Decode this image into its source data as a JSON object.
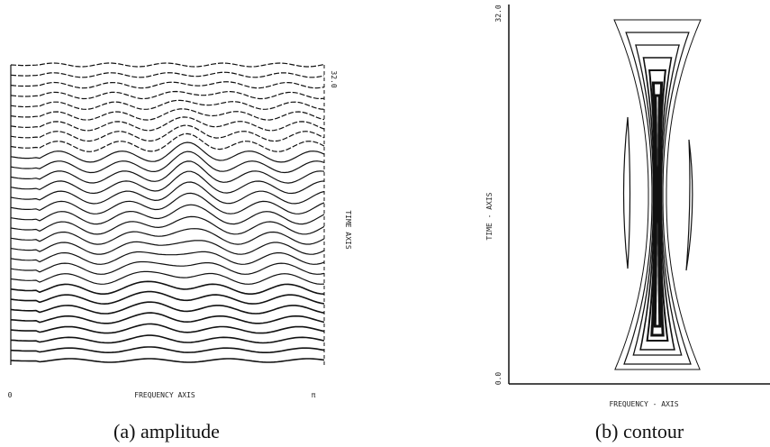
{
  "panels": [
    {
      "caption": "(a) amplitude",
      "x_axis_label": "FREQUENCY AXIS",
      "x_start_label": "0",
      "x_end_label": "π",
      "y_axis_label": "TIME AXIS",
      "y_end_label": "32.0"
    },
    {
      "caption": "(b) contour",
      "x_axis_label": "FREQUENCY - AXIS",
      "y_axis_label": "TIME - AXIS",
      "y_start_label": "0.0",
      "y_end_label": "32.0"
    }
  ]
}
